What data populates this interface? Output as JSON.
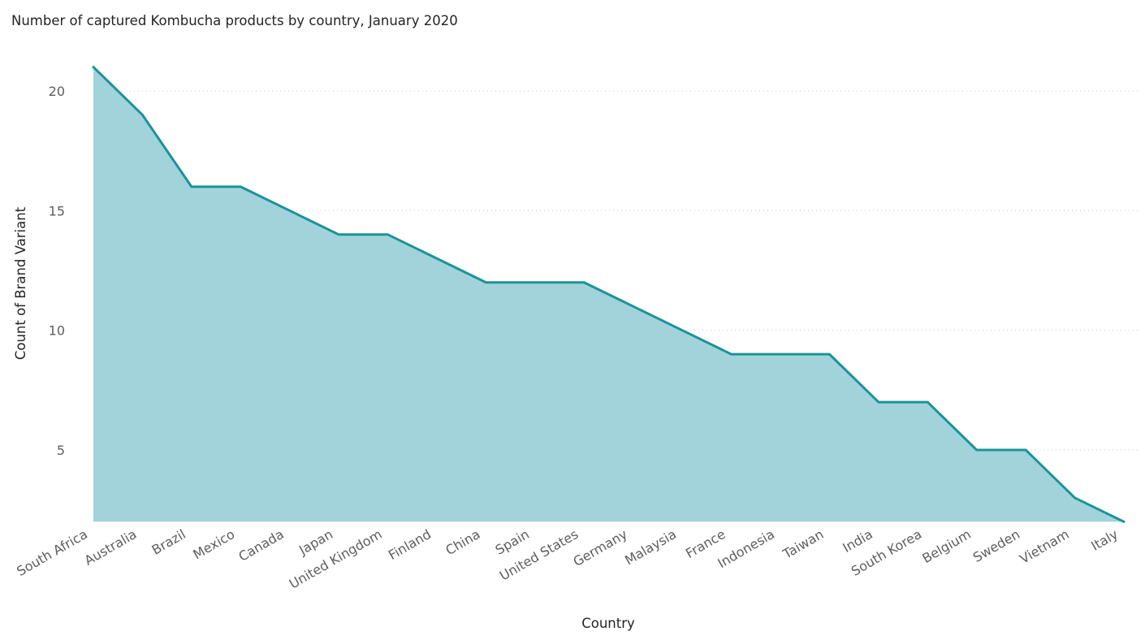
{
  "chart_data": {
    "type": "area",
    "title": "Number of captured Kombucha products by country, January 2020",
    "xlabel": "Country",
    "ylabel": "Count of Brand Variant",
    "categories": [
      "South Africa",
      "Australia",
      "Brazil",
      "Mexico",
      "Canada",
      "Japan",
      "United Kingdom",
      "Finland",
      "China",
      "Spain",
      "United States",
      "Germany",
      "Malaysia",
      "France",
      "Indonesia",
      "Taiwan",
      "India",
      "South Korea",
      "Belgium",
      "Sweden",
      "Vietnam",
      "Italy"
    ],
    "series": [
      {
        "values": [
          21,
          19,
          16,
          16,
          15,
          14,
          14,
          13,
          12,
          12,
          12,
          11,
          10,
          9,
          9,
          9,
          7,
          7,
          5,
          5,
          3,
          2
        ]
      }
    ],
    "yticks": [
      5,
      10,
      15,
      20
    ],
    "ylim": [
      2,
      21
    ],
    "grid": true,
    "line_color": "#1a939b",
    "fill_color": "#a2d3da"
  }
}
